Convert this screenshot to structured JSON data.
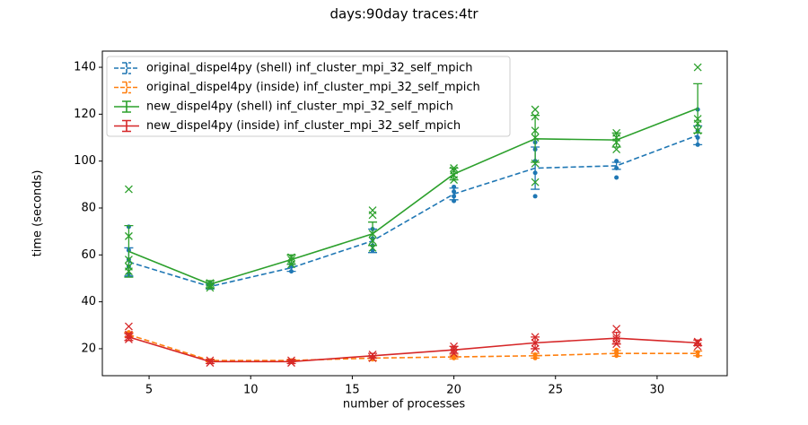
{
  "chart_data": {
    "type": "errorbar",
    "title": "days:90day traces:4tr",
    "x_label": "number of processes",
    "y_label": "time (seconds)",
    "xlim": [
      2.7,
      33.45
    ],
    "xticks": [
      5,
      10,
      15,
      20,
      25,
      30
    ],
    "ylim": [
      8.5,
      146.9
    ],
    "yticks": [
      20,
      40,
      60,
      80,
      100,
      120,
      140
    ],
    "grid": false,
    "legend": "upper left",
    "series": [
      {
        "name": "original_dispel4py (shell) inf_cluster_mpi_32_self_mpich",
        "color": "#1f77b4",
        "linestyle": "dashed",
        "marker": "o",
        "x": [
          4,
          8,
          12,
          16,
          20,
          24,
          28,
          32
        ],
        "values": [
          57,
          46.5,
          54.5,
          66,
          86,
          97,
          98,
          111
        ],
        "errors": [
          6,
          1,
          1.5,
          5,
          2.5,
          9,
          1.5,
          4
        ],
        "sample_x": [
          4,
          4,
          4,
          4,
          4,
          8,
          8,
          8,
          12,
          12,
          12,
          16,
          16,
          16,
          16,
          20,
          20,
          20,
          20,
          24,
          24,
          24,
          24,
          24,
          28,
          28,
          28,
          32,
          32,
          32,
          32
        ],
        "sample_y": [
          52,
          55,
          58,
          62,
          72,
          46,
          47,
          48,
          53,
          55,
          56,
          62,
          64,
          67,
          71,
          83,
          85,
          87,
          89,
          85,
          95,
          100,
          105,
          108,
          93,
          97,
          100,
          107,
          110,
          113,
          122
        ]
      },
      {
        "name": "original_dispel4py (inside) inf_cluster_mpi_32_self_mpich",
        "color": "#ff7f0e",
        "linestyle": "dashed",
        "marker": "o",
        "x": [
          4,
          8,
          12,
          16,
          20,
          24,
          28,
          32
        ],
        "values": [
          26,
          15,
          15,
          16,
          16.5,
          17,
          18,
          18
        ],
        "errors": [
          1,
          0.5,
          0.5,
          1,
          0.8,
          1,
          1.2,
          1
        ],
        "sample_x": [
          4,
          4,
          4,
          8,
          12,
          12,
          16,
          16,
          20,
          20,
          24,
          24,
          28,
          28,
          28,
          32,
          32
        ],
        "sample_y": [
          25,
          26,
          27,
          15,
          14.5,
          15,
          15.5,
          16.5,
          16,
          17,
          16,
          17.5,
          17,
          18.5,
          19.5,
          17,
          18.5
        ]
      },
      {
        "name": "new_dispel4py (shell) inf_cluster_mpi_32_self_mpich",
        "color": "#2ca02c",
        "linestyle": "solid",
        "marker": "x",
        "x": [
          4,
          8,
          12,
          16,
          20,
          24,
          28,
          32
        ],
        "values": [
          61.5,
          47.5,
          58,
          69,
          94.5,
          109.5,
          109,
          122.5
        ],
        "errors": [
          11,
          1.5,
          2,
          5,
          2.5,
          10,
          3,
          10.5
        ],
        "sample_x": [
          4,
          4,
          4,
          4,
          4,
          8,
          8,
          8,
          12,
          12,
          12,
          16,
          16,
          16,
          16,
          16,
          20,
          20,
          20,
          20,
          24,
          24,
          24,
          24,
          24,
          24,
          28,
          28,
          28,
          28,
          32,
          32,
          32,
          32
        ],
        "sample_y": [
          53,
          55,
          58,
          68,
          88,
          46,
          47,
          48,
          56,
          58,
          59,
          63,
          66,
          69,
          77,
          79,
          92,
          94,
          96,
          97,
          91,
          99,
          110,
          113,
          119,
          122,
          105,
          108,
          110,
          112,
          113,
          116,
          118,
          140
        ]
      },
      {
        "name": "new_dispel4py (inside) inf_cluster_mpi_32_self_mpich",
        "color": "#d62728",
        "linestyle": "solid",
        "marker": "x",
        "x": [
          4,
          8,
          12,
          16,
          20,
          24,
          28,
          32
        ],
        "values": [
          25,
          14.5,
          14.5,
          17,
          19.5,
          22.5,
          24.5,
          22.5
        ],
        "errors": [
          1.5,
          0.8,
          0.8,
          1,
          1.5,
          2.5,
          2.5,
          1.2
        ],
        "sample_x": [
          4,
          4,
          4,
          4,
          8,
          8,
          12,
          12,
          16,
          16,
          20,
          20,
          20,
          24,
          24,
          24,
          28,
          28,
          28,
          28,
          32,
          32,
          32
        ],
        "sample_y": [
          24,
          25,
          26,
          29.5,
          14,
          15,
          14,
          15,
          16,
          17.5,
          18,
          19.5,
          21,
          20,
          22.5,
          25,
          22,
          24,
          25,
          28.5,
          21,
          22.5,
          23
        ]
      }
    ]
  }
}
